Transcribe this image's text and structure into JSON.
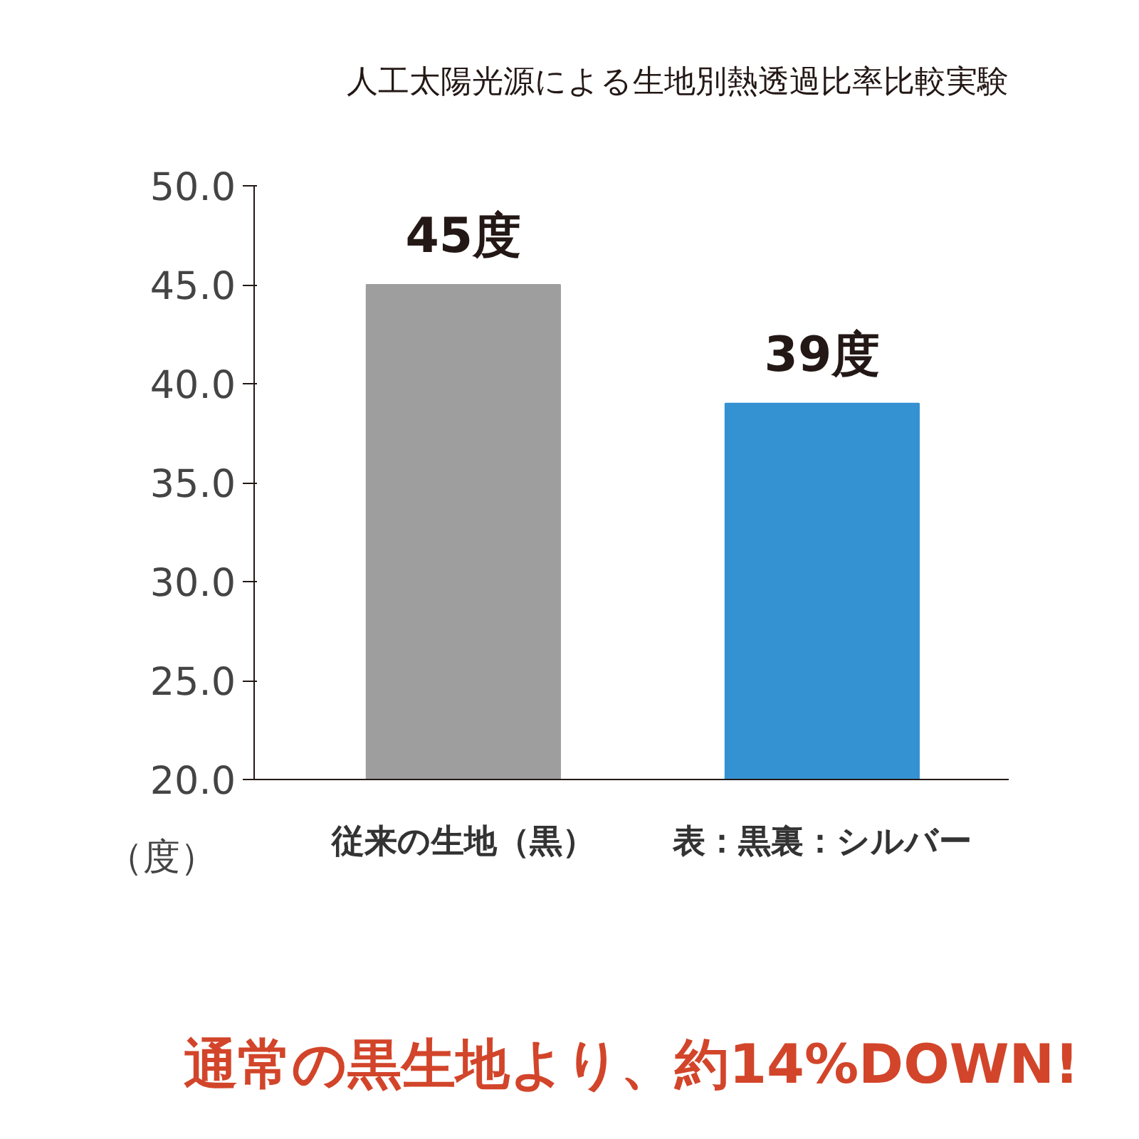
{
  "chart_data": {
    "type": "bar",
    "title": "人工太陽光源による生地別熱透過比率比較実験",
    "ylabel": "（度）",
    "categories": [
      "従来の生地（黒）",
      "表：黒裏：シルバー"
    ],
    "values": [
      45,
      39
    ],
    "colors": [
      "#9e9e9e",
      "#3592d2"
    ],
    "value_labels": [
      "45度",
      "39度"
    ],
    "ylim": [
      20,
      50
    ],
    "yticks": [
      {
        "value": 20,
        "label": "20.0"
      },
      {
        "value": 25,
        "label": "25.0"
      },
      {
        "value": 30,
        "label": "30.0"
      },
      {
        "value": 35,
        "label": "35.0"
      },
      {
        "value": 40,
        "label": "40.0"
      },
      {
        "value": 45,
        "label": "45.0"
      },
      {
        "value": 50,
        "label": "50.0"
      }
    ],
    "annotations": [
      "通常の黒生地より、約14%DOWN!"
    ]
  }
}
